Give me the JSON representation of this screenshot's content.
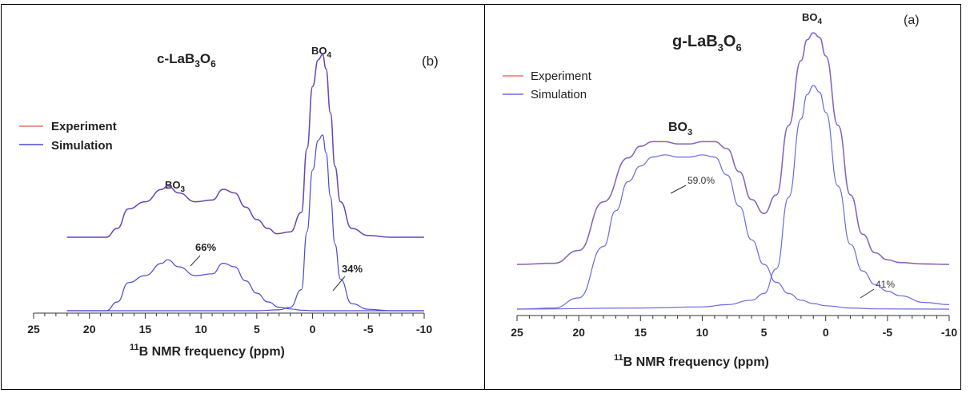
{
  "chart_data": [
    {
      "id": "left",
      "type": "line",
      "panel_label": "(b)",
      "title_main": "c-LaB",
      "title_sub1": "3",
      "title_mid": "O",
      "title_sub2": "6",
      "xlabel_sup": "11",
      "xlabel_main": "B NMR frequency (ppm)",
      "x_reversed": true,
      "xlim": [
        25,
        -10
      ],
      "xticks": [
        25,
        20,
        15,
        10,
        5,
        0,
        -5,
        -10
      ],
      "xtick_labels": [
        "25",
        "20",
        "15",
        "10",
        "5",
        "0",
        "-5",
        "-10"
      ],
      "legend": [
        {
          "label": "Experiment",
          "color": "#e8706b"
        },
        {
          "label": "Simulation",
          "color": "#4a4ad6"
        }
      ],
      "legend_placement": "left",
      "annotations": {
        "bo4": {
          "main": "BO",
          "sub": "4"
        },
        "bo3": {
          "main": "BO",
          "sub": "3"
        },
        "bo3_percent": "66%",
        "bo4_percent": "34%"
      },
      "series": [
        {
          "name": "Experiment",
          "color": "#e8706b",
          "role": "total",
          "x": [
            22,
            18.5,
            17.5,
            16.5,
            15,
            13.5,
            13,
            12,
            10.5,
            9,
            8,
            7,
            6,
            5,
            4,
            3.2,
            2,
            1,
            0.5,
            0,
            -0.5,
            -0.9,
            -1.2,
            -1.6,
            -2,
            -2.5,
            -3.5,
            -5,
            -7,
            -10
          ],
          "y": [
            0,
            0,
            0.05,
            0.16,
            0.2,
            0.27,
            0.29,
            0.25,
            0.2,
            0.21,
            0.27,
            0.25,
            0.17,
            0.1,
            0.05,
            0.02,
            0.03,
            0.14,
            0.5,
            0.85,
            1.0,
            1.03,
            0.95,
            0.7,
            0.4,
            0.2,
            0.05,
            0.01,
            0,
            0
          ]
        },
        {
          "name": "Simulation",
          "color": "#4a4ad6",
          "role": "total",
          "x": [
            22,
            18.5,
            17.5,
            16.5,
            15,
            13.5,
            13,
            12,
            10.5,
            9,
            8,
            7,
            6,
            5,
            4,
            3.2,
            2,
            1,
            0.5,
            0,
            -0.5,
            -0.9,
            -1.2,
            -1.6,
            -2,
            -2.5,
            -3.5,
            -5,
            -7,
            -10
          ],
          "y": [
            0,
            0,
            0.05,
            0.16,
            0.2,
            0.27,
            0.29,
            0.25,
            0.2,
            0.21,
            0.27,
            0.25,
            0.17,
            0.1,
            0.05,
            0.02,
            0.03,
            0.14,
            0.5,
            0.85,
            1.0,
            1.03,
            0.95,
            0.7,
            0.4,
            0.2,
            0.05,
            0.01,
            0,
            0
          ]
        },
        {
          "name": "BO3 component",
          "color": "#4a4ad6",
          "role": "component",
          "x": [
            22,
            18.5,
            17.5,
            16.5,
            15,
            13.5,
            13,
            12,
            10.5,
            9,
            8,
            7,
            6,
            5,
            4,
            3,
            2,
            1,
            0,
            -1,
            -3,
            -10
          ],
          "y": [
            0,
            0,
            0.05,
            0.16,
            0.2,
            0.27,
            0.29,
            0.25,
            0.2,
            0.21,
            0.27,
            0.25,
            0.17,
            0.1,
            0.05,
            0.02,
            0.01,
            0.003,
            0,
            0,
            0,
            0
          ]
        },
        {
          "name": "BO4 component",
          "color": "#4a4ad6",
          "role": "component",
          "x": [
            22,
            5,
            3,
            2,
            1,
            0.5,
            0,
            -0.5,
            -0.9,
            -1.2,
            -1.6,
            -2,
            -2.5,
            -3.5,
            -5,
            -7,
            -10
          ],
          "y": [
            0,
            0,
            0.005,
            0.02,
            0.12,
            0.45,
            0.8,
            0.97,
            1.0,
            0.9,
            0.65,
            0.38,
            0.18,
            0.04,
            0.008,
            0,
            0
          ]
        }
      ]
    },
    {
      "id": "right",
      "type": "line",
      "panel_label": "(a)",
      "title_main": "g-LaB",
      "title_sub1": "3",
      "title_mid": "O",
      "title_sub2": "6",
      "xlabel_sup": "11",
      "xlabel_main": "B NMR frequency (ppm)",
      "x_reversed": true,
      "xlim": [
        25,
        -10
      ],
      "xticks": [
        25,
        20,
        15,
        10,
        5,
        0,
        -5,
        -10
      ],
      "xtick_labels": [
        "25",
        "20",
        "15",
        "10",
        "5",
        "0",
        "-5",
        "-10"
      ],
      "legend": [
        {
          "label": "Experiment",
          "color": "#e8706b"
        },
        {
          "label": "Simulation",
          "color": "#6a6ae0"
        }
      ],
      "legend_placement": "top-left",
      "annotations": {
        "bo4": {
          "main": "BO",
          "sub": "4"
        },
        "bo3": {
          "main": "BO",
          "sub": "3"
        },
        "bo3_percent": "59.0%",
        "bo4_percent": "41%"
      },
      "series": [
        {
          "name": "Experiment",
          "color": "#e8706b",
          "role": "total",
          "x": [
            25,
            22,
            20,
            18,
            16,
            15,
            14,
            13,
            12,
            11,
            10,
            9,
            8,
            7,
            6,
            5,
            4,
            3,
            2,
            1.5,
            1,
            0.5,
            0,
            -1,
            -2,
            -3,
            -4,
            -5,
            -6,
            -8,
            -10
          ],
          "y": [
            0,
            0.005,
            0.06,
            0.27,
            0.46,
            0.51,
            0.53,
            0.53,
            0.52,
            0.52,
            0.53,
            0.53,
            0.5,
            0.4,
            0.28,
            0.22,
            0.3,
            0.6,
            0.88,
            0.97,
            1.0,
            0.98,
            0.9,
            0.6,
            0.3,
            0.13,
            0.05,
            0.02,
            0.008,
            0.002,
            0
          ],
          "offset": 0
        },
        {
          "name": "Simulation",
          "color": "#6a6ae0",
          "role": "total",
          "x": [
            25,
            22,
            20,
            18,
            16,
            15,
            14,
            13,
            12,
            11,
            10,
            9,
            8,
            7,
            6,
            5,
            4,
            3,
            2,
            1.5,
            1,
            0.5,
            0,
            -1,
            -2,
            -3,
            -4,
            -5,
            -6,
            -8,
            -10
          ],
          "y": [
            0,
            0.005,
            0.06,
            0.27,
            0.46,
            0.51,
            0.53,
            0.53,
            0.52,
            0.52,
            0.53,
            0.53,
            0.5,
            0.4,
            0.28,
            0.22,
            0.3,
            0.6,
            0.88,
            0.97,
            1.0,
            0.98,
            0.9,
            0.6,
            0.3,
            0.13,
            0.05,
            0.02,
            0.008,
            0.002,
            0
          ]
        },
        {
          "name": "BO3 component",
          "color": "#6a6ae0",
          "role": "component",
          "x": [
            25,
            22,
            20,
            18,
            17,
            16,
            15,
            14,
            13,
            12,
            11,
            10,
            9,
            8,
            7,
            6,
            5,
            4,
            3,
            2,
            1,
            0,
            -2,
            -4,
            -10
          ],
          "y": [
            0,
            0.005,
            0.05,
            0.28,
            0.44,
            0.57,
            0.64,
            0.68,
            0.69,
            0.68,
            0.68,
            0.69,
            0.68,
            0.6,
            0.46,
            0.31,
            0.2,
            0.12,
            0.07,
            0.04,
            0.025,
            0.015,
            0.005,
            0.001,
            0
          ]
        },
        {
          "name": "BO4 component",
          "color": "#6a6ae0",
          "role": "component",
          "x": [
            25,
            15,
            10,
            8,
            6,
            5,
            4,
            3,
            2,
            1.5,
            1,
            0.5,
            0,
            -1,
            -2,
            -3,
            -4,
            -5,
            -6,
            -8,
            -10
          ],
          "y": [
            0,
            0.005,
            0.01,
            0.02,
            0.04,
            0.07,
            0.18,
            0.5,
            0.85,
            0.96,
            1.0,
            0.97,
            0.88,
            0.55,
            0.29,
            0.17,
            0.11,
            0.08,
            0.06,
            0.03,
            0.02
          ]
        }
      ]
    }
  ]
}
